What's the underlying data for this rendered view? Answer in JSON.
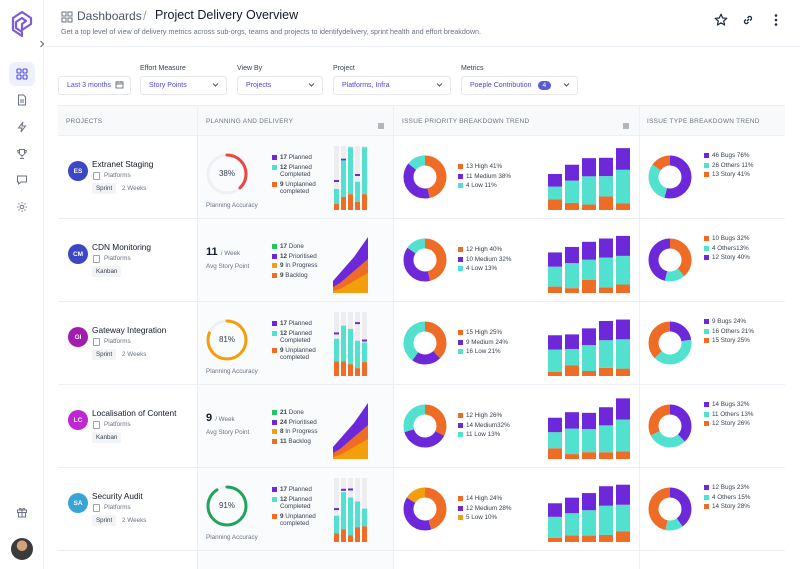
{
  "header": {
    "breadcrumb_root": "Dashboards",
    "separator": "/",
    "title": "Project Delivery Overview",
    "subtitle": "Get a top level of view of delivery metrics across sub-orgs, teams and projects to identifydelivery, sprint health and effort breakdown."
  },
  "filters": {
    "date_value": "Last 3 months",
    "effort_label": "Effort Measure",
    "effort_value": "Story Points",
    "viewby_label": "View By",
    "viewby_value": "Projects",
    "project_label": "Project",
    "project_value": "Platforms, Infra",
    "metrics_label": "Metrics",
    "metrics_value": "Poeple Contribution",
    "metrics_count": "4"
  },
  "columns": {
    "projects": "PROJECTS",
    "planning": "PLANNING AND DELIVERY",
    "priority": "ISSUE PRIORITY BREAKDOWN TREND",
    "type": "ISSUE TYPE BREAKDOWN TREND"
  },
  "colors": {
    "planned": "#6d28d9",
    "completed": "#52e1cf",
    "unplanned": "#ef6c26",
    "done": "#22c55e",
    "prioritised": "#6d28d9",
    "inprogress": "#f59e0b",
    "backlog": "#ef6c26",
    "high": "#ef6c26",
    "medium": "#6d28d9",
    "low": "#52e1cf"
  },
  "rows": [
    {
      "initials": "ES",
      "avatar_color": "#3b47c4",
      "name": "Extranet Staging",
      "org": "Platforms",
      "tag": "Sprint",
      "duration": "2 Weeks",
      "mode": "sprint",
      "gauge_value": 38,
      "gauge_text": "38%",
      "gauge_color": "#ef4444",
      "accuracy_label": "Planning Accuracy",
      "plan_legend": [
        {
          "n": "17",
          "t": "Planned",
          "c": "planned"
        },
        {
          "n": "12",
          "t": "Planned Completed",
          "c": "completed"
        },
        {
          "n": "9",
          "t": "Unplanned completed",
          "c": "unplanned"
        }
      ],
      "priority": [
        {
          "v": 13,
          "l": "13 High 41%",
          "c": "high"
        },
        {
          "v": 11,
          "l": "11 Medium 38%",
          "c": "medium"
        },
        {
          "v": 4,
          "l": "4 Low 11%",
          "c": "low"
        }
      ],
      "type": [
        {
          "v": 46,
          "l": "46 Bugs 76%",
          "c": "medium"
        },
        {
          "v": 26,
          "l": "26 Others 11%",
          "c": "low"
        },
        {
          "v": 13,
          "l": "13 Story 41%",
          "c": "high"
        }
      ]
    },
    {
      "initials": "CM",
      "avatar_color": "#3b47c4",
      "name": "CDN Monitoring",
      "org": "Platforms",
      "tag": "Kanban",
      "duration": "",
      "mode": "kanban",
      "rate": "11",
      "rate_unit": "/ Week",
      "rate_label": "Avg Story Point",
      "plan_legend": [
        {
          "n": "17",
          "t": "Done",
          "c": "done"
        },
        {
          "n": "12",
          "t": "Prioritised",
          "c": "prioritised"
        },
        {
          "n": "9",
          "t": "In Progress",
          "c": "inprogress"
        },
        {
          "n": "9",
          "t": "Backlog",
          "c": "backlog"
        }
      ],
      "priority": [
        {
          "v": 12,
          "l": "12 High 40%",
          "c": "high"
        },
        {
          "v": 10,
          "l": "10 Medium 32%",
          "c": "medium"
        },
        {
          "v": 4,
          "l": "4 Low 13%",
          "c": "low"
        }
      ],
      "type": [
        {
          "v": 10,
          "l": "10 Bugs 32%",
          "c": "high"
        },
        {
          "v": 4,
          "l": "4 Others13%",
          "c": "low"
        },
        {
          "v": 12,
          "l": "12 Story 40%",
          "c": "medium"
        }
      ]
    },
    {
      "initials": "GI",
      "avatar_color": "#a21caf",
      "name": "Gateway Integration",
      "org": "Platforms",
      "tag": "Sprint",
      "duration": "2 Weeks",
      "mode": "sprint",
      "gauge_value": 81,
      "gauge_text": "81%",
      "gauge_color": "#f59e0b",
      "accuracy_label": "Planning Accuracy",
      "plan_legend": [
        {
          "n": "17",
          "t": "Planned",
          "c": "planned"
        },
        {
          "n": "12",
          "t": "Planned Completed",
          "c": "completed"
        },
        {
          "n": "9",
          "t": "Unplanned completed",
          "c": "unplanned"
        }
      ],
      "priority": [
        {
          "v": 15,
          "l": "15 High 25%",
          "c": "high"
        },
        {
          "v": 9,
          "l": "9 Medium 24%",
          "c": "medium"
        },
        {
          "v": 16,
          "l": "16 Low 21%",
          "c": "low"
        }
      ],
      "type": [
        {
          "v": 9,
          "l": "9 Bugs 24%",
          "c": "medium"
        },
        {
          "v": 16,
          "l": "16 Others 21%",
          "c": "low"
        },
        {
          "v": 15,
          "l": "15 Story 25%",
          "c": "high"
        }
      ]
    },
    {
      "initials": "LC",
      "avatar_color": "#c026d3",
      "name": "Localisation of Content",
      "org": "Platforms",
      "tag": "Kanban",
      "duration": "",
      "mode": "kanban",
      "rate": "9",
      "rate_unit": "/ Week",
      "rate_label": "Avg Story Point",
      "plan_legend": [
        {
          "n": "21",
          "t": "Done",
          "c": "done"
        },
        {
          "n": "24",
          "t": "Prioritised",
          "c": "prioritised"
        },
        {
          "n": "8",
          "t": "In Progress",
          "c": "inprogress"
        },
        {
          "n": "11",
          "t": "Backlog",
          "c": "backlog"
        }
      ],
      "priority": [
        {
          "v": 12,
          "l": "12 High 26%",
          "c": "high"
        },
        {
          "v": 14,
          "l": "14 Medium32%",
          "c": "medium"
        },
        {
          "v": 11,
          "l": "11 Low 13%",
          "c": "low"
        }
      ],
      "type": [
        {
          "v": 14,
          "l": "14 Bugs 32%",
          "c": "medium"
        },
        {
          "v": 11,
          "l": "11 Others 13%",
          "c": "low"
        },
        {
          "v": 12,
          "l": "12 Story 26%",
          "c": "high"
        }
      ]
    },
    {
      "initials": "SA",
      "avatar_color": "#38a5d8",
      "name": "Security Audit",
      "org": "Platforms",
      "tag": "Sprint",
      "duration": "2 Weeks",
      "mode": "sprint",
      "gauge_value": 91,
      "gauge_text": "91%",
      "gauge_color": "#22a35b",
      "accuracy_label": "Planning Accuracy",
      "plan_legend": [
        {
          "n": "17",
          "t": "Planned",
          "c": "planned"
        },
        {
          "n": "12",
          "t": "Planned Completed",
          "c": "completed"
        },
        {
          "n": "9",
          "t": "Unplanned completed",
          "c": "unplanned"
        }
      ],
      "priority": [
        {
          "v": 14,
          "l": "14 High 24%",
          "c": "high"
        },
        {
          "v": 12,
          "l": "12 Medium 28%",
          "c": "medium"
        },
        {
          "v": 5,
          "l": "5 Low 10%",
          "c": "inprogress"
        }
      ],
      "type": [
        {
          "v": 12,
          "l": "12 Bugs 23%",
          "c": "medium"
        },
        {
          "v": 4,
          "l": "4 Others 15%",
          "c": "low"
        },
        {
          "v": 14,
          "l": "14 Story 28%",
          "c": "high"
        }
      ]
    }
  ]
}
